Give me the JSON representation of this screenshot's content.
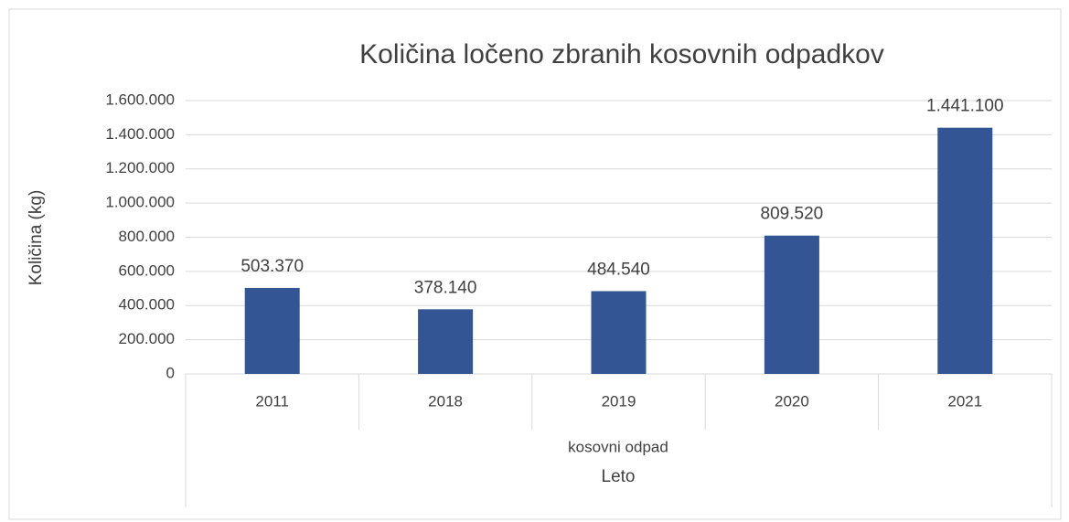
{
  "chart_data": {
    "type": "bar",
    "title": "Količina ločeno zbranih kosovnih odpadkov",
    "y_label": "Količina (kg)",
    "x_label": "Leto",
    "group_label": "kosovni odpad",
    "categories": [
      "2011",
      "2018",
      "2019",
      "2020",
      "2021"
    ],
    "values": [
      503370,
      378140,
      484540,
      809520,
      1441100
    ],
    "value_labels": [
      "503.370",
      "378.140",
      "484.540",
      "809.520",
      "1.441.100"
    ],
    "color": "#335593",
    "ylim": [
      0,
      1600000
    ],
    "yticks": [
      0,
      {
        "value": 200000,
        "label": "200.000"
      },
      {
        "value": 400000,
        "label": "400.000"
      },
      {
        "value": 600000,
        "label": "600.000"
      },
      {
        "value": 800000,
        "label": "800.000"
      },
      {
        "value": 1000000,
        "label": "1.000.000"
      },
      {
        "value": 1200000,
        "label": "1.200.000"
      },
      {
        "value": 1400000,
        "label": "1.400.000"
      },
      {
        "value": 1600000,
        "label": "1.600.000"
      }
    ],
    "grid": true
  }
}
